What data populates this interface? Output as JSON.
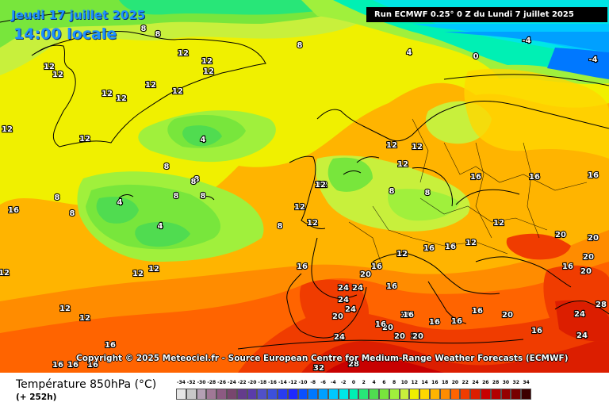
{
  "header": {
    "date_label": "Jeudi 17 juillet 2025",
    "time_label": "14:00 locale",
    "run_label": "Run ECMWF 0.25° 0 Z du Lundi 7 juillet 2025"
  },
  "copyright": "Copyright © 2025 Meteociel.fr - Source European Centre for Medium-Range Weather Forecasts (ECMWF)",
  "footer": {
    "parameter": "Température 850hPa (°C)",
    "lead_time": "(+ 252h)"
  },
  "legend": {
    "values": [
      "-34",
      "-32",
      "-30",
      "-28",
      "-26",
      "-24",
      "-22",
      "-20",
      "-18",
      "-16",
      "-14",
      "-12",
      "-10",
      "-8",
      "-6",
      "-4",
      "-2",
      "0",
      "2",
      "4",
      "6",
      "8",
      "10",
      "12",
      "14",
      "16",
      "18",
      "20",
      "22",
      "24",
      "26",
      "28",
      "30",
      "32",
      "34"
    ],
    "colors": [
      "#e6e6e6",
      "#c8c8c8",
      "#b4a0b4",
      "#a07896",
      "#8c5a82",
      "#78466e",
      "#643c8c",
      "#5a3caa",
      "#5050c8",
      "#3c50dc",
      "#283cf0",
      "#1e28ff",
      "#0a50ff",
      "#0078ff",
      "#00a0ff",
      "#00c8ff",
      "#00e6e6",
      "#00f0b4",
      "#28e678",
      "#50dc50",
      "#78e63c",
      "#a0f03c",
      "#c8f03c",
      "#f0f000",
      "#ffd700",
      "#ffb400",
      "#ff8c00",
      "#ff6400",
      "#f03c00",
      "#dc1e00",
      "#c80000",
      "#b40000",
      "#960000",
      "#780000",
      "#3c0000"
    ]
  },
  "map_labels": [
    {
      "t": "8"
    },
    {
      "t": "8"
    },
    {
      "t": "8"
    },
    {
      "t": "4"
    },
    {
      "t": "0"
    },
    {
      "t": "-4"
    },
    {
      "t": "-4"
    },
    {
      "t": "12"
    },
    {
      "t": "12"
    },
    {
      "t": "12"
    },
    {
      "t": "12"
    },
    {
      "t": "12"
    },
    {
      "t": "12"
    },
    {
      "t": "12"
    },
    {
      "t": "12"
    },
    {
      "t": "12"
    },
    {
      "t": "12"
    },
    {
      "t": "12"
    },
    {
      "t": "4"
    },
    {
      "t": "4"
    },
    {
      "t": "4"
    },
    {
      "t": "8"
    },
    {
      "t": "8"
    },
    {
      "t": "8"
    },
    {
      "t": "8"
    },
    {
      "t": "8"
    },
    {
      "t": "8"
    },
    {
      "t": "8"
    },
    {
      "t": "16"
    },
    {
      "t": "16"
    },
    {
      "t": "16"
    },
    {
      "t": "16"
    },
    {
      "t": "12"
    },
    {
      "t": "12"
    },
    {
      "t": "12"
    },
    {
      "t": "12"
    },
    {
      "t": "12"
    },
    {
      "t": "12"
    },
    {
      "t": "12"
    },
    {
      "t": "8"
    },
    {
      "t": "8"
    },
    {
      "t": "12"
    },
    {
      "t": "12"
    },
    {
      "t": "12"
    },
    {
      "t": "16"
    },
    {
      "t": "16"
    },
    {
      "t": "16"
    },
    {
      "t": "16"
    },
    {
      "t": "12"
    },
    {
      "t": "12"
    },
    {
      "t": "16"
    },
    {
      "t": "20"
    },
    {
      "t": "20"
    },
    {
      "t": "20"
    },
    {
      "t": "20"
    },
    {
      "t": "20"
    },
    {
      "t": "28"
    },
    {
      "t": "24"
    },
    {
      "t": "24"
    },
    {
      "t": "20"
    },
    {
      "t": "24"
    },
    {
      "t": "24"
    },
    {
      "t": "24"
    },
    {
      "t": "24"
    },
    {
      "t": "20"
    },
    {
      "t": "16"
    },
    {
      "t": "16"
    },
    {
      "t": "16"
    },
    {
      "t": "16"
    },
    {
      "t": "20"
    },
    {
      "t": "20"
    },
    {
      "t": "16"
    },
    {
      "t": "20"
    },
    {
      "t": "20"
    },
    {
      "t": "16"
    },
    {
      "t": "24"
    },
    {
      "t": "16"
    },
    {
      "t": "16"
    },
    {
      "t": "16"
    },
    {
      "t": "16"
    },
    {
      "t": "32"
    },
    {
      "t": "28"
    },
    {
      "t": "12"
    },
    {
      "t": "12"
    },
    {
      "t": "12"
    },
    {
      "t": "8"
    },
    {
      "t": "16"
    },
    {
      "t": "16"
    }
  ]
}
